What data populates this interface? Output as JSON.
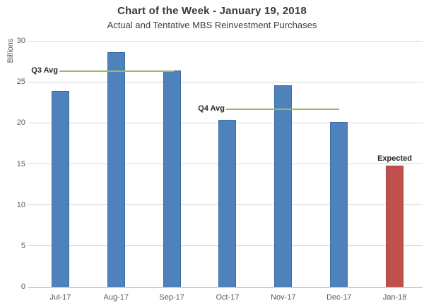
{
  "chart_data": {
    "type": "bar",
    "title": "Chart of the Week - January 19, 2018",
    "subtitle": "Actual and Tentative MBS Reinvestment Purchases",
    "ylabel": "Billions",
    "xlabel": "",
    "categories": [
      "Jul-17",
      "Aug-17",
      "Sep-17",
      "Oct-17",
      "Nov-17",
      "Dec-17",
      "Jan-18"
    ],
    "values": [
      23.9,
      28.6,
      26.4,
      20.4,
      24.6,
      20.1,
      14.8
    ],
    "bar_colors": [
      "#4F81BD",
      "#4F81BD",
      "#4F81BD",
      "#4F81BD",
      "#4F81BD",
      "#4F81BD",
      "#C0504D"
    ],
    "bar_edge_colors": [
      "#3A6EA5",
      "#3A6EA5",
      "#3A6EA5",
      "#3A6EA5",
      "#3A6EA5",
      "#3A6EA5",
      "#A84441"
    ],
    "ylim": [
      0,
      30
    ],
    "yticks": [
      0,
      5,
      10,
      15,
      20,
      25,
      30
    ],
    "grid": "horizontal",
    "legend": "none",
    "avg_lines": [
      {
        "label": "Q3 Avg",
        "value": 26.3,
        "categories_spanned": [
          "Jul-17",
          "Aug-17",
          "Sep-17"
        ]
      },
      {
        "label": "Q4 Avg",
        "value": 21.7,
        "categories_spanned": [
          "Oct-17",
          "Nov-17",
          "Dec-17"
        ]
      }
    ],
    "bar_annotations": [
      {
        "label": "Expected",
        "category": "Jan-18"
      }
    ],
    "colors": {
      "actual_bar": "#4F81BD",
      "expected_bar": "#C0504D",
      "avg_line": "#9BBB59",
      "gridline": "#D9D9D9",
      "axis_line": "#ABABAB",
      "axis_text": "#595959",
      "title_text": "#3B3B3B",
      "annotation_text": "#262626"
    }
  }
}
